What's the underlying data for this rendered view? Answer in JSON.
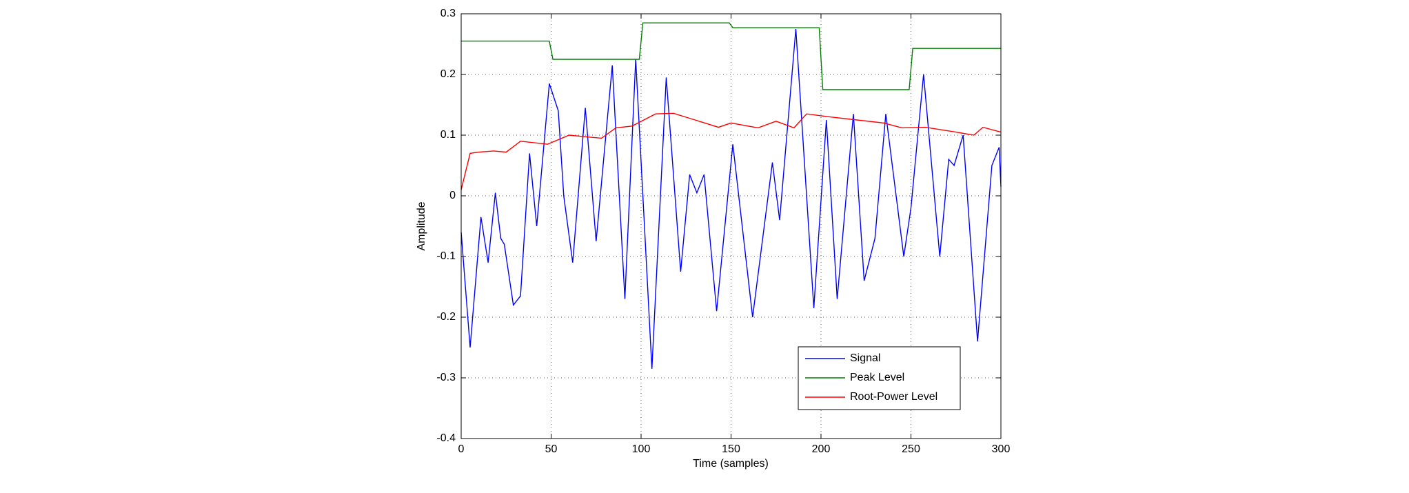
{
  "chart_data": {
    "type": "line",
    "xlabel": "Time (samples)",
    "ylabel": "Amplitude",
    "xlim": [
      0,
      300
    ],
    "ylim": [
      -0.4,
      0.3
    ],
    "xticks": [
      0,
      50,
      100,
      150,
      200,
      250,
      300
    ],
    "yticks": [
      -0.4,
      -0.3,
      -0.2,
      -0.1,
      0,
      0.1,
      0.2,
      0.3
    ],
    "grid": true,
    "legend": "lower right",
    "series": [
      {
        "name": "Signal",
        "color": "#0000ff",
        "x": [
          0,
          5,
          11,
          15,
          19,
          22,
          24,
          29,
          33,
          38,
          42,
          49,
          54,
          57,
          62,
          69,
          75,
          84,
          91,
          97,
          101,
          106,
          114,
          122,
          127,
          131,
          135,
          142,
          151,
          162,
          173,
          177,
          186,
          196,
          203,
          209,
          218,
          224,
          230,
          236,
          246,
          250,
          257,
          266,
          271,
          274,
          279,
          287,
          295,
          299,
          300
        ],
        "values": [
          -0.06,
          -0.25,
          -0.035,
          -0.11,
          0.005,
          -0.07,
          -0.08,
          -0.18,
          -0.165,
          0.07,
          -0.05,
          0.185,
          0.14,
          0.0,
          -0.11,
          0.145,
          -0.075,
          0.215,
          -0.17,
          0.225,
          0.0,
          -0.285,
          0.195,
          -0.125,
          0.035,
          0.005,
          0.035,
          -0.19,
          0.085,
          -0.2,
          0.055,
          -0.04,
          0.275,
          -0.185,
          0.125,
          -0.17,
          0.135,
          -0.14,
          -0.07,
          0.135,
          -0.1,
          -0.02,
          0.2,
          -0.1,
          0.06,
          0.05,
          0.1,
          -0.24,
          0.05,
          0.08,
          0.015
        ]
      },
      {
        "name": "Peak Level",
        "color": "#008000",
        "x": [
          0,
          49,
          51,
          99,
          101,
          149,
          151,
          199,
          201,
          249,
          251,
          300
        ],
        "values": [
          0.255,
          0.255,
          0.225,
          0.225,
          0.285,
          0.285,
          0.277,
          0.277,
          0.175,
          0.175,
          0.243,
          0.243
        ]
      },
      {
        "name": "Root-Power Level",
        "color": "#ff0000",
        "x": [
          0,
          5,
          10,
          18,
          25,
          33,
          48,
          60,
          70,
          78,
          86,
          95,
          108,
          118,
          130,
          143,
          150,
          165,
          175,
          185,
          192,
          205,
          220,
          235,
          245,
          258,
          275,
          285,
          290,
          300
        ],
        "values": [
          0.01,
          0.07,
          0.072,
          0.074,
          0.072,
          0.09,
          0.085,
          0.1,
          0.097,
          0.095,
          0.112,
          0.115,
          0.135,
          0.136,
          0.125,
          0.113,
          0.12,
          0.112,
          0.123,
          0.112,
          0.135,
          0.13,
          0.125,
          0.12,
          0.112,
          0.113,
          0.105,
          0.1,
          0.113,
          0.105
        ]
      }
    ]
  }
}
